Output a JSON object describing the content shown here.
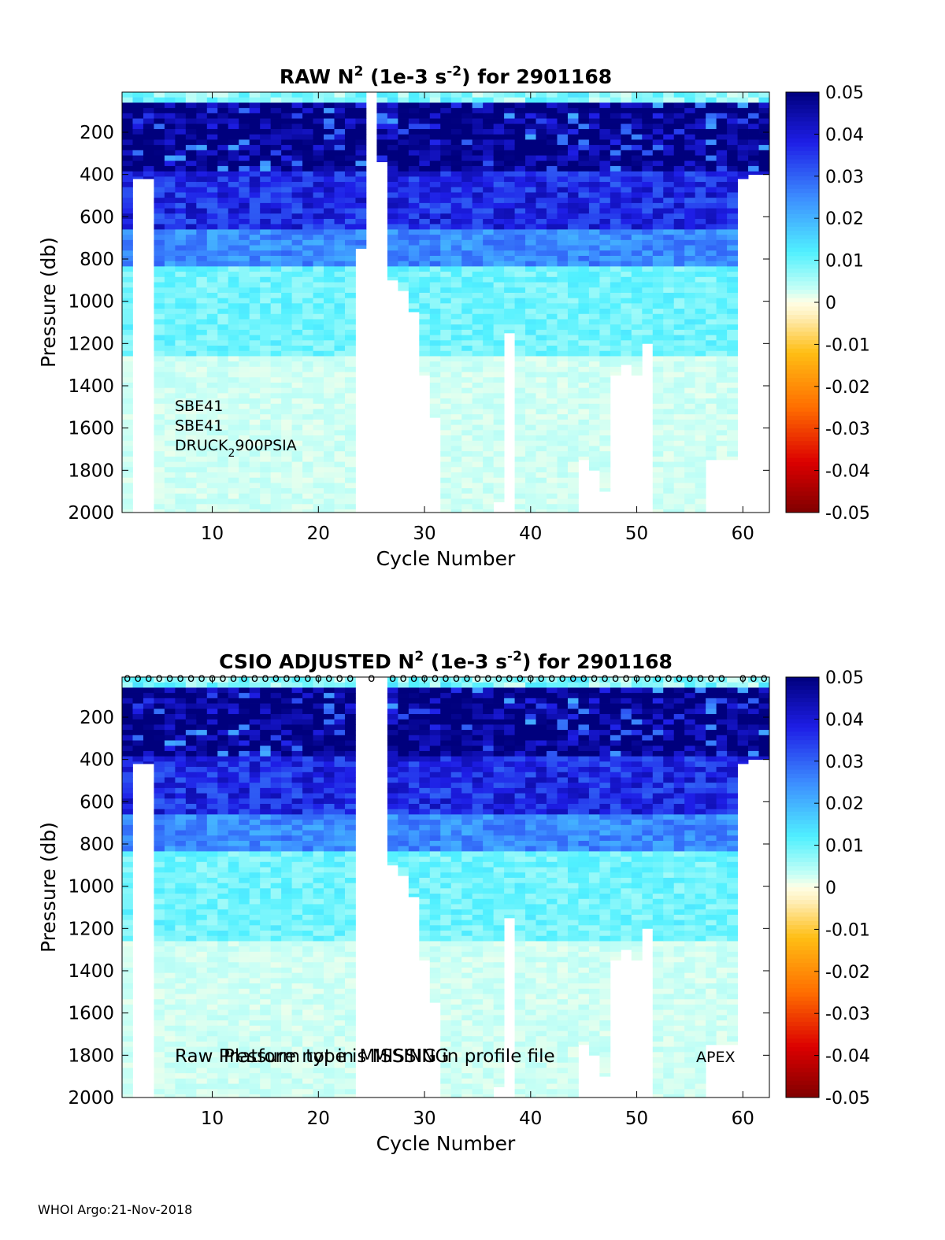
{
  "chart_data": [
    {
      "type": "heatmap",
      "title": "RAW N² (1e-3 s⁻²) for 2901168",
      "title_parts": {
        "prefix": "RAW N",
        "sup1": "2",
        "mid": " (1e-3 s",
        "sup2": "-2",
        "suffix": ") for 2901168"
      },
      "xlabel": "Cycle Number",
      "ylabel": "Pressure (db)",
      "xlim": [
        1.5,
        62.5
      ],
      "ylim": [
        2000,
        10
      ],
      "xticks": [
        10,
        20,
        30,
        40,
        50,
        60
      ],
      "yticks": [
        200,
        400,
        600,
        800,
        1000,
        1200,
        1400,
        1600,
        1800,
        2000
      ],
      "colorbar": {
        "min": -0.05,
        "max": 0.05,
        "ticks": [
          "0.05",
          "0.04",
          "0.03",
          "0.02",
          "0.01",
          "0",
          "-0.01",
          "-0.02",
          "-0.03",
          "-0.04",
          "-0.05"
        ]
      },
      "annotations": {
        "sensor_line1": "SBE41",
        "sensor_line2": "SBE41",
        "sensor_line3_main": "DRUCK",
        "sensor_line3_sub": "2",
        "sensor_line3_rest": "900PSIA"
      },
      "missing_cycles": [
        25
      ],
      "profile_max_pressure": {
        "2": 2000,
        "3": 420,
        "4": 420,
        "5": 2000,
        "6": 2000,
        "7": 2000,
        "8": 2000,
        "9": 2000,
        "10": 2000,
        "11": 2000,
        "12": 2000,
        "13": 2000,
        "14": 2000,
        "15": 2000,
        "16": 2000,
        "17": 2000,
        "18": 2000,
        "19": 2000,
        "20": 2000,
        "21": 2000,
        "22": 2000,
        "23": 2000,
        "24": 750,
        "26": 340,
        "27": 900,
        "28": 950,
        "29": 1050,
        "30": 1350,
        "31": 1550,
        "32": 2000,
        "33": 2000,
        "34": 2000,
        "35": 2000,
        "36": 2000,
        "37": 1950,
        "38": 1150,
        "39": 2000,
        "40": 2000,
        "41": 2000,
        "42": 2000,
        "43": 2000,
        "44": 2000,
        "45": 1750,
        "46": 1800,
        "47": 1900,
        "48": 1350,
        "49": 1300,
        "50": 1350,
        "51": 1200,
        "52": 2000,
        "53": 2000,
        "54": 2000,
        "55": 2000,
        "56": 2000,
        "57": 1750,
        "58": 1750,
        "59": 1750,
        "60": 420,
        "61": 400,
        "62": 400
      }
    },
    {
      "type": "heatmap",
      "title": "CSIO  ADJUSTED N² (1e-3 s⁻²) for 2901168",
      "title_parts": {
        "prefix": "CSIO  ADJUSTED N",
        "sup1": "2",
        "mid": " (1e-3 s",
        "sup2": "-2",
        "suffix": ") for 2901168"
      },
      "xlabel": "Cycle Number",
      "ylabel": "Pressure (db)",
      "xlim": [
        1.5,
        62.5
      ],
      "ylim": [
        2000,
        10
      ],
      "xticks": [
        10,
        20,
        30,
        40,
        50,
        60
      ],
      "yticks": [
        200,
        400,
        600,
        800,
        1000,
        1200,
        1400,
        1600,
        1800,
        2000
      ],
      "colorbar": {
        "min": -0.05,
        "max": 0.05,
        "ticks": [
          "0.05",
          "0.04",
          "0.03",
          "0.02",
          "0.01",
          "0",
          "-0.01",
          "-0.02",
          "-0.03",
          "-0.04",
          "-0.05"
        ]
      },
      "qc_markers": {
        "symbol": "o",
        "cycles_missing": [
          24,
          26,
          59
        ]
      },
      "annotations": {
        "overlap_text_a": "Raw Pressure not in MISSING in profile file",
        "overlap_text_b": "Platform type is MISSING",
        "platform": "APEX"
      },
      "missing_cycles": [
        24,
        26
      ]
    }
  ],
  "footer": "WHOI Argo:21-Nov-2018"
}
